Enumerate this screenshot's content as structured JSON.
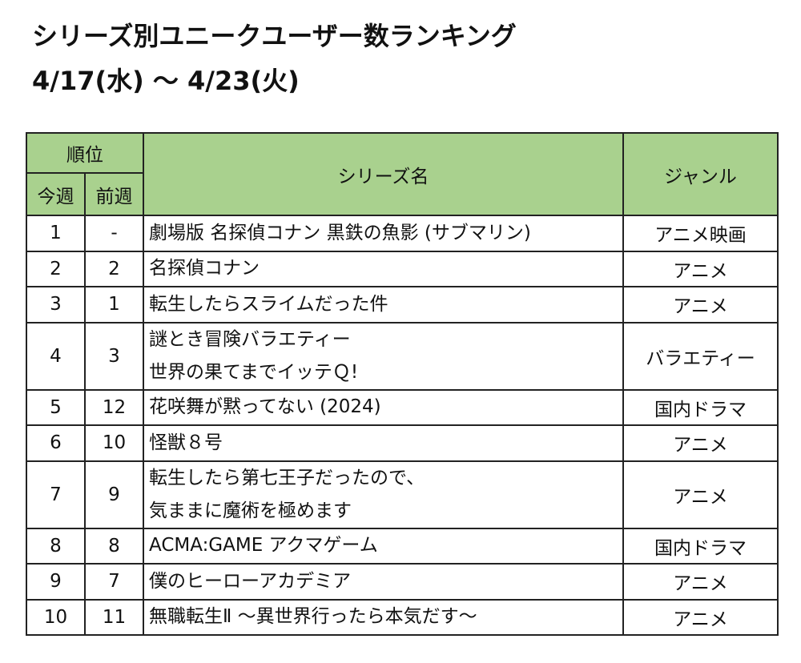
{
  "header": {
    "title": "シリーズ別ユニークユーザー数ランキング",
    "period": "4/17(水) ～ 4/23(火)"
  },
  "table": {
    "headers": {
      "rank": "順位",
      "this_week": "今週",
      "last_week": "前週",
      "series": "シリーズ名",
      "genre": "ジャンル"
    },
    "rows": [
      {
        "this_week": "1",
        "last_week": "-",
        "series": [
          "劇場版 名探偵コナン 黒鉄の魚影 (サブマリン)"
        ],
        "genre": "アニメ映画"
      },
      {
        "this_week": "2",
        "last_week": "2",
        "series": [
          "名探偵コナン"
        ],
        "genre": "アニメ"
      },
      {
        "this_week": "3",
        "last_week": "1",
        "series": [
          "転生したらスライムだった件"
        ],
        "genre": "アニメ"
      },
      {
        "this_week": "4",
        "last_week": "3",
        "series": [
          "謎とき冒険バラエティー",
          "世界の果てまでイッテＱ!"
        ],
        "genre": "バラエティー"
      },
      {
        "this_week": "5",
        "last_week": "12",
        "series": [
          "花咲舞が黙ってない (2024)"
        ],
        "genre": "国内ドラマ"
      },
      {
        "this_week": "6",
        "last_week": "10",
        "series": [
          "怪獣８号"
        ],
        "genre": "アニメ"
      },
      {
        "this_week": "7",
        "last_week": "9",
        "series": [
          "転生したら第七王子だったので、",
          "気ままに魔術を極めます"
        ],
        "genre": "アニメ"
      },
      {
        "this_week": "8",
        "last_week": "8",
        "series": [
          "ACMA:GAME アクマゲーム"
        ],
        "genre": "国内ドラマ"
      },
      {
        "this_week": "9",
        "last_week": "7",
        "series": [
          "僕のヒーローアカデミア"
        ],
        "genre": "アニメ"
      },
      {
        "this_week": "10",
        "last_week": "11",
        "series": [
          "無職転生Ⅱ ～異世界行ったら本気だす～"
        ],
        "genre": "アニメ"
      }
    ]
  }
}
